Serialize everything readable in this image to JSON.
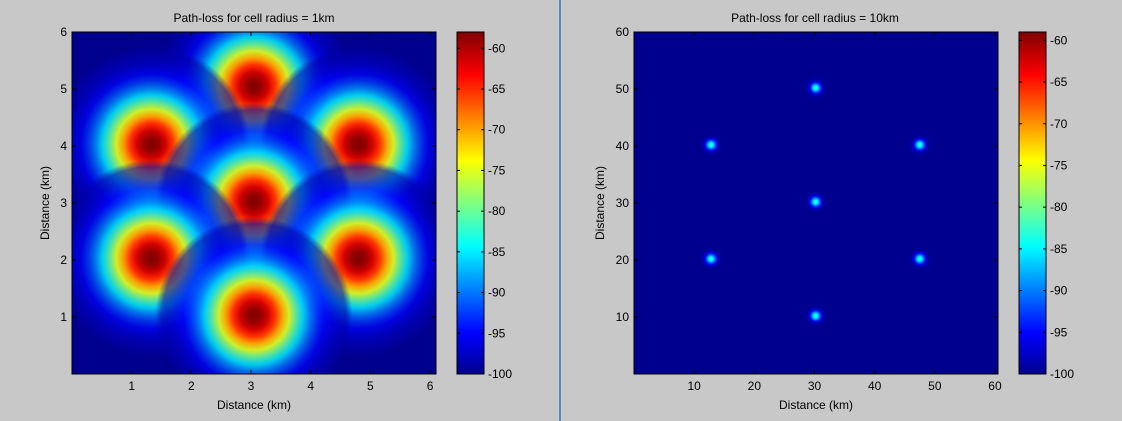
{
  "window": {
    "panel_bg": "#c8c8c8",
    "divider_color": "#5b87c6"
  },
  "colormap": {
    "name": "jet",
    "stops": [
      "#00008f",
      "#0000ff",
      "#00ffff",
      "#ffff00",
      "#ff0000",
      "#800000"
    ]
  },
  "chart_data": [
    {
      "type": "heatmap",
      "title": "Path-loss for cell radius = 1km",
      "xlabel": "Distance (km)",
      "ylabel": "Distance (km)",
      "xlim": [
        0,
        6.1
      ],
      "ylim": [
        0,
        6.0
      ],
      "xticks": [
        1,
        2,
        3,
        4,
        5,
        6
      ],
      "yticks": [
        1,
        2,
        3,
        4,
        5,
        6
      ],
      "colorbar": {
        "clim": [
          -100,
          -58
        ],
        "ticks": [
          -60,
          -65,
          -70,
          -75,
          -80,
          -85,
          -90,
          -95,
          -100
        ]
      },
      "spot_sigma_km": 0.55,
      "peak_value": -58,
      "floor_value": -100,
      "base_stations": [
        {
          "x": 3.05,
          "y": 5.05
        },
        {
          "x": 1.33,
          "y": 4.03
        },
        {
          "x": 4.8,
          "y": 4.03
        },
        {
          "x": 3.05,
          "y": 3.03
        },
        {
          "x": 1.33,
          "y": 2.03
        },
        {
          "x": 4.8,
          "y": 2.03
        },
        {
          "x": 3.05,
          "y": 1.03
        }
      ]
    },
    {
      "type": "heatmap",
      "title": "Path-loss for cell radius = 10km",
      "xlabel": "Distance (km)",
      "ylabel": "Distance (km)",
      "xlim": [
        0,
        60.5
      ],
      "ylim": [
        0,
        60.0
      ],
      "xticks": [
        10,
        20,
        30,
        40,
        50,
        60
      ],
      "yticks": [
        10,
        20,
        30,
        40,
        50,
        60
      ],
      "colorbar": {
        "clim": [
          -100,
          -59
        ],
        "ticks": [
          -60,
          -65,
          -70,
          -75,
          -80,
          -85,
          -90,
          -95,
          -100
        ]
      },
      "spot_sigma_km": 0.6,
      "peak_value": -83,
      "floor_value": -100,
      "base_stations": [
        {
          "x": 30.2,
          "y": 50.2
        },
        {
          "x": 12.8,
          "y": 40.2
        },
        {
          "x": 47.5,
          "y": 40.2
        },
        {
          "x": 30.2,
          "y": 30.2
        },
        {
          "x": 12.8,
          "y": 20.2
        },
        {
          "x": 47.5,
          "y": 20.2
        },
        {
          "x": 30.2,
          "y": 10.2
        }
      ]
    }
  ]
}
